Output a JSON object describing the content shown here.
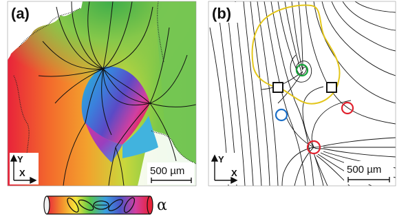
{
  "panel_a": {
    "label": "(a)",
    "axis_y": "Y",
    "axis_x": "X",
    "scale_bar": "500 µm"
  },
  "panel_b": {
    "label": "(b)",
    "axis_y": "Y",
    "axis_x": "X",
    "scale_bar": "500 µm"
  },
  "colorbar": {
    "symbol": "α",
    "colors": [
      "#e8233a",
      "#f38a2d",
      "#f7e73a",
      "#58c54a",
      "#3a9fe0",
      "#4b55c8",
      "#d23fa0",
      "#e8233a"
    ]
  },
  "markers": {
    "green_circle_color": "#17a33a",
    "blue_circle_color": "#1b6fc8",
    "red_circle_color": "#e0202c",
    "yellow_loop_color": "#e3c61b"
  }
}
